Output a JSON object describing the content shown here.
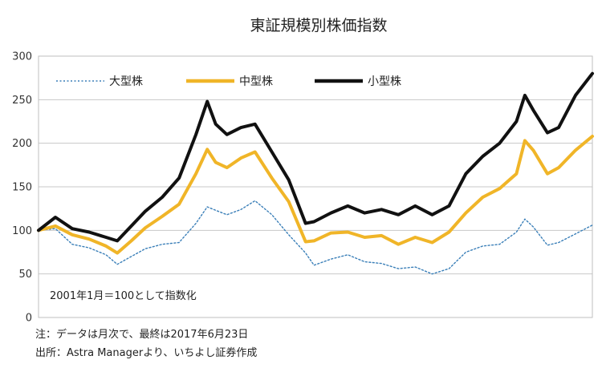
{
  "chart_data": {
    "type": "line",
    "title": "東証規模別株価指数",
    "ylim": [
      0,
      300
    ],
    "yticks": [
      0,
      50,
      100,
      150,
      200,
      250,
      300
    ],
    "xlim": [
      "2001-01",
      "2017-06"
    ],
    "grid": true,
    "legend_position": "top-left",
    "annotation": "2001年1月＝100として指数化",
    "notes": [
      "注：データは月次で、最終は2017年6月23日",
      "出所：Astra Managerより、いちよし証券作成"
    ],
    "x": [
      "2001-01",
      "2001-07",
      "2002-01",
      "2002-07",
      "2003-01",
      "2003-05",
      "2003-10",
      "2004-03",
      "2004-09",
      "2005-03",
      "2005-09",
      "2006-01",
      "2006-04",
      "2006-08",
      "2007-01",
      "2007-06",
      "2007-12",
      "2008-06",
      "2008-12",
      "2009-03",
      "2009-09",
      "2010-03",
      "2010-09",
      "2011-03",
      "2011-09",
      "2012-03",
      "2012-09",
      "2013-03",
      "2013-09",
      "2014-03",
      "2014-09",
      "2015-03",
      "2015-06",
      "2015-09",
      "2016-02",
      "2016-06",
      "2016-12",
      "2017-06"
    ],
    "series": [
      {
        "name": "大型株",
        "color": "#3a7fb8",
        "style": "dotted",
        "values": [
          100,
          102,
          84,
          80,
          72,
          61,
          70,
          79,
          84,
          86,
          108,
          127,
          123,
          118,
          124,
          134,
          118,
          95,
          74,
          60,
          67,
          72,
          64,
          62,
          56,
          58,
          50,
          56,
          75,
          82,
          84,
          98,
          113,
          104,
          83,
          86,
          96,
          106
        ]
      },
      {
        "name": "中型株",
        "color": "#f0b528",
        "style": "solid",
        "values": [
          100,
          105,
          95,
          90,
          82,
          74,
          88,
          103,
          116,
          130,
          165,
          193,
          178,
          172,
          183,
          190,
          160,
          133,
          87,
          88,
          97,
          98,
          92,
          94,
          84,
          92,
          86,
          98,
          120,
          138,
          148,
          165,
          203,
          192,
          165,
          172,
          192,
          208
        ]
      },
      {
        "name": "小型株",
        "color": "#111111",
        "style": "solid",
        "values": [
          100,
          115,
          102,
          98,
          92,
          88,
          105,
          122,
          138,
          160,
          210,
          248,
          222,
          210,
          218,
          222,
          190,
          158,
          108,
          110,
          120,
          128,
          120,
          124,
          118,
          128,
          118,
          128,
          165,
          185,
          200,
          225,
          255,
          238,
          212,
          218,
          255,
          280
        ]
      }
    ]
  }
}
